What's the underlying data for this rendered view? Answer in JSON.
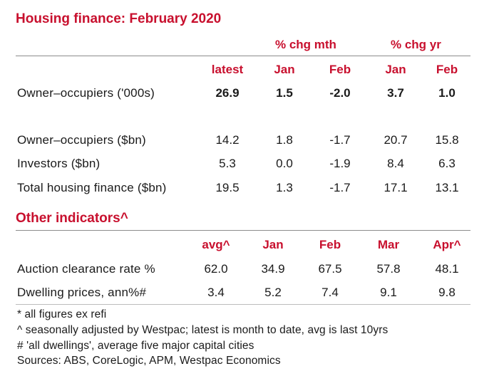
{
  "housing": {
    "title": "Housing finance: February 2020",
    "group_headers": [
      "% chg mth",
      "% chg yr"
    ],
    "col_headers": [
      "latest",
      "Jan",
      "Feb",
      "Jan",
      "Feb"
    ],
    "rows": [
      {
        "label": "Owner–occupiers ('000s)",
        "values": [
          "26.9",
          "1.5",
          "-2.0",
          "3.7",
          "1.0"
        ]
      },
      {
        "label": "Owner–occupiers ($bn)",
        "values": [
          "14.2",
          "1.8",
          "-1.7",
          "20.7",
          "15.8"
        ]
      },
      {
        "label": "Investors ($bn)",
        "values": [
          "5.3",
          "0.0",
          "-1.9",
          "8.4",
          "6.3"
        ]
      },
      {
        "label": "Total housing finance ($bn)",
        "values": [
          "19.5",
          "1.3",
          "-1.7",
          "17.1",
          "13.1"
        ]
      }
    ]
  },
  "other": {
    "title": "Other indicators^",
    "col_headers": [
      "avg^",
      "Jan",
      "Feb",
      "Mar",
      "Apr^"
    ],
    "rows": [
      {
        "label": "Auction clearance rate %",
        "values": [
          "62.0",
          "34.9",
          "67.5",
          "57.8",
          "48.1"
        ]
      },
      {
        "label": "Dwelling prices, ann%#",
        "values": [
          "3.4",
          "5.2",
          "7.4",
          "9.1",
          "9.8"
        ]
      }
    ]
  },
  "footnotes": [
    "* all figures ex refi",
    "^ seasonally adjusted by Westpac; latest is month to date, avg is last 10yrs",
    "# 'all dwellings', average five major capital cities",
    "Sources: ABS, CoreLogic, APM, Westpac Economics"
  ],
  "colors": {
    "accent": "#c8102e",
    "text": "#1a1a1a",
    "rule": "#8c8c8c"
  }
}
